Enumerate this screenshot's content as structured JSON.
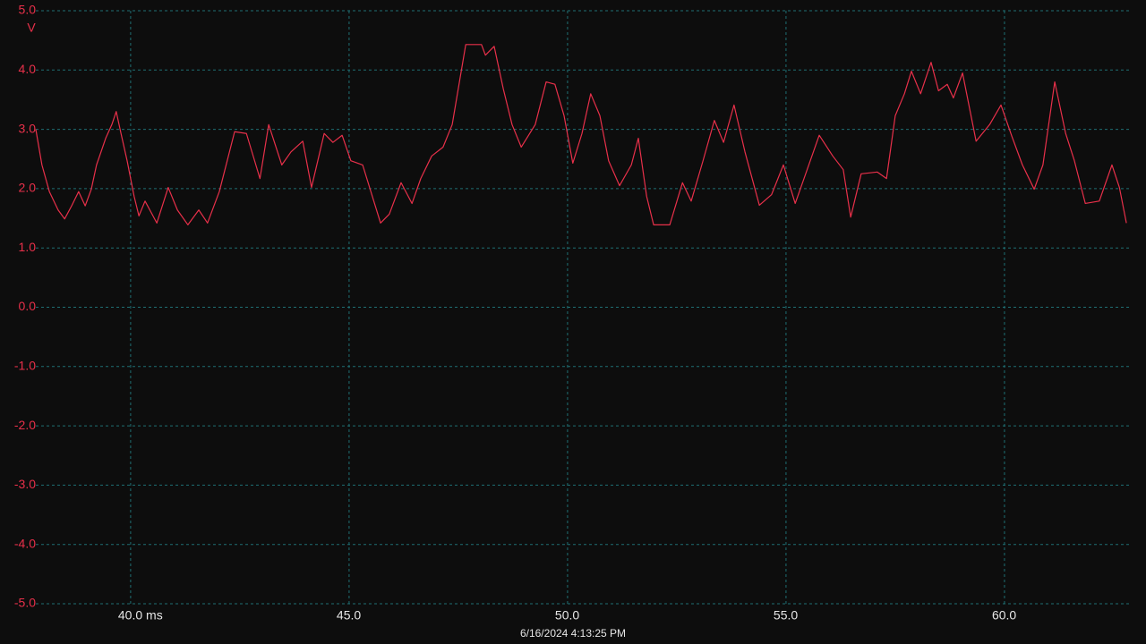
{
  "chart_data": {
    "type": "line",
    "y_unit": "V",
    "footer": "6/16/2024 4:13:25 PM",
    "color": "#e8304a",
    "grid": true,
    "xlim": [
      37.83,
      62.87
    ],
    "ylim": [
      -5,
      5
    ],
    "xticks": [
      {
        "value": 40,
        "label": "40.0 ms"
      },
      {
        "value": 45,
        "label": "45.0"
      },
      {
        "value": 50,
        "label": "50.0"
      },
      {
        "value": 55,
        "label": "55.0"
      },
      {
        "value": 60,
        "label": "60.0"
      }
    ],
    "yticks": [
      {
        "value": 5,
        "label": "5.0"
      },
      {
        "value": 4,
        "label": "4.0"
      },
      {
        "value": 3,
        "label": "3.0"
      },
      {
        "value": 2,
        "label": "2.0"
      },
      {
        "value": 1,
        "label": "1.0"
      },
      {
        "value": 0,
        "label": "0.0"
      },
      {
        "value": -1,
        "label": "-1.0"
      },
      {
        "value": -2,
        "label": "-2.0"
      },
      {
        "value": -3,
        "label": "-3.0"
      },
      {
        "value": -4,
        "label": "-4.0"
      },
      {
        "value": -5,
        "label": "-5.0"
      }
    ],
    "x": [
      37.83,
      37.97,
      38.14,
      38.34,
      38.49,
      38.65,
      38.81,
      38.96,
      39.1,
      39.22,
      39.43,
      39.57,
      39.67,
      39.78,
      39.92,
      40.08,
      40.19,
      40.33,
      40.6,
      40.86,
      41.07,
      41.31,
      41.56,
      41.76,
      42.03,
      42.38,
      42.65,
      42.96,
      43.16,
      43.46,
      43.67,
      43.94,
      44.14,
      44.43,
      44.63,
      44.84,
      45.04,
      45.31,
      45.72,
      45.92,
      46.19,
      46.44,
      46.64,
      46.89,
      47.15,
      47.36,
      47.67,
      48.03,
      48.12,
      48.32,
      48.53,
      48.73,
      48.94,
      49.26,
      49.51,
      49.71,
      49.92,
      50.12,
      50.33,
      50.53,
      50.74,
      50.94,
      51.19,
      51.46,
      51.62,
      51.81,
      51.97,
      52.34,
      52.63,
      52.83,
      53.1,
      53.36,
      53.57,
      53.81,
      54.06,
      54.39,
      54.67,
      54.94,
      55.21,
      55.45,
      55.76,
      56.07,
      56.31,
      56.48,
      56.72,
      57.09,
      57.3,
      57.5,
      57.71,
      57.87,
      58.08,
      58.32,
      58.49,
      58.69,
      58.83,
      59.04,
      59.35,
      59.66,
      59.92,
      60.17,
      60.41,
      60.68,
      60.88,
      61.15,
      61.4,
      61.6,
      61.85,
      62.17,
      62.46,
      62.63,
      62.79
    ],
    "values": [
      3.0,
      2.4,
      1.95,
      1.64,
      1.49,
      1.71,
      1.95,
      1.71,
      1.99,
      2.4,
      2.85,
      3.08,
      3.3,
      2.93,
      2.47,
      1.87,
      1.54,
      1.79,
      1.42,
      2.02,
      1.64,
      1.39,
      1.64,
      1.42,
      1.95,
      2.96,
      2.93,
      2.17,
      3.08,
      2.4,
      2.62,
      2.8,
      2.02,
      2.93,
      2.78,
      2.9,
      2.47,
      2.4,
      1.42,
      1.57,
      2.1,
      1.75,
      2.17,
      2.55,
      2.7,
      3.08,
      4.43,
      4.43,
      4.25,
      4.4,
      3.68,
      3.08,
      2.7,
      3.08,
      3.8,
      3.76,
      3.23,
      2.43,
      2.93,
      3.6,
      3.23,
      2.47,
      2.05,
      2.4,
      2.85,
      1.87,
      1.39,
      1.39,
      2.1,
      1.79,
      2.47,
      3.15,
      2.78,
      3.41,
      2.62,
      1.72,
      1.9,
      2.4,
      1.75,
      2.25,
      2.9,
      2.55,
      2.32,
      1.52,
      2.25,
      2.28,
      2.17,
      3.23,
      3.6,
      3.98,
      3.6,
      4.13,
      3.65,
      3.76,
      3.53,
      3.95,
      2.8,
      3.08,
      3.41,
      2.88,
      2.4,
      1.99,
      2.4,
      3.8,
      2.93,
      2.47,
      1.75,
      1.79,
      2.4,
      2.02,
      1.42
    ]
  }
}
